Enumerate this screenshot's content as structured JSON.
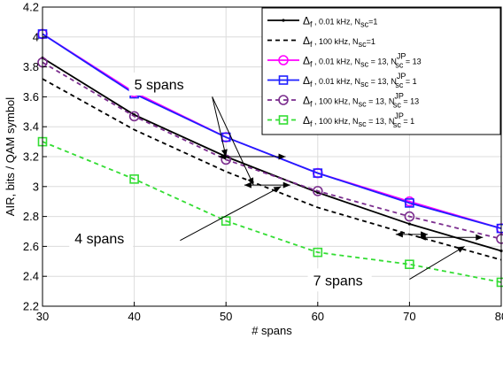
{
  "chart_data": {
    "type": "line",
    "xlabel": "# spans",
    "ylabel": "AIR, bits / QAM symbol",
    "xlim": [
      30,
      80
    ],
    "ylim": [
      2.2,
      4.2
    ],
    "xticks": [
      "30",
      "40",
      "50",
      "60",
      "70",
      "80"
    ],
    "yticks": [
      "2.2",
      "2.4",
      "2.6",
      "2.8",
      "3",
      "3.2",
      "3.4",
      "3.6",
      "3.8",
      "4",
      "4.2"
    ],
    "grid": true,
    "legend_position": "top-right",
    "x": [
      30,
      40,
      50,
      60,
      70,
      80
    ],
    "series": [
      {
        "name": "Δf , 0.01 kHz, Nsc=1",
        "legend": {
          "a": "Δ",
          "a_sub": "f",
          "b": " , 0.01 kHz, N",
          "b_sub": "sc",
          "c": "=1",
          "sup": "",
          "sup_sub": "",
          "d": ""
        },
        "values": [
          3.86,
          3.48,
          3.2,
          2.96,
          2.75,
          2.57
        ],
        "color": "#000000",
        "dash": "solid",
        "marker": "dot"
      },
      {
        "name": "Δf , 100 kHz, Nsc=1",
        "legend": {
          "a": "Δ",
          "a_sub": "f",
          "b": " , 100 kHz, N",
          "b_sub": "sc",
          "c": "=1",
          "sup": "",
          "sup_sub": "",
          "d": ""
        },
        "values": [
          3.72,
          3.38,
          3.1,
          2.86,
          2.68,
          2.51
        ],
        "color": "#000000",
        "dash": "dashed",
        "marker": "none"
      },
      {
        "name": "Δf , 0.01 kHz, Nsc = 13, NscJP = 13",
        "legend": {
          "a": "Δ",
          "a_sub": "f",
          "b": " , 0.01 kHz, N",
          "b_sub": "sc",
          "c": " = 13, N",
          "sup": "JP",
          "sup_sub": "sc",
          "d": " = 13"
        },
        "values": [
          4.02,
          3.63,
          3.33,
          3.09,
          2.9,
          2.72
        ],
        "color": "#ff00ff",
        "dash": "solid",
        "marker": "circle"
      },
      {
        "name": "Δf , 0.01 kHz, Nsc = 13, NscJP = 1",
        "legend": {
          "a": "Δ",
          "a_sub": "f",
          "b": " , 0.01 kHz, N",
          "b_sub": "sc",
          "c": " = 13, N",
          "sup": "JP",
          "sup_sub": "sc",
          "d": " = 1"
        },
        "values": [
          4.02,
          3.62,
          3.33,
          3.09,
          2.89,
          2.72
        ],
        "color": "#1f1fff",
        "dash": "solid",
        "marker": "square"
      },
      {
        "name": "Δf , 100 kHz, Nsc = 13, NscJP = 13",
        "legend": {
          "a": "Δ",
          "a_sub": "f",
          "b": " , 100 kHz, N",
          "b_sub": "sc",
          "c": " = 13, N",
          "sup": "JP",
          "sup_sub": "sc",
          "d": " = 13"
        },
        "values": [
          3.83,
          3.47,
          3.18,
          2.97,
          2.8,
          2.65
        ],
        "color": "#7b2d8e",
        "dash": "dashed",
        "marker": "circle"
      },
      {
        "name": "Δf , 100 kHz, Nsc = 13, NscJP = 1",
        "legend": {
          "a": "Δ",
          "a_sub": "f",
          "b": " , 100 kHz, N",
          "b_sub": "sc",
          "c": " = 13, N",
          "sup": "JP",
          "sup_sub": "sc",
          "d": " = 1"
        },
        "values": [
          3.3,
          3.05,
          2.77,
          2.56,
          2.48,
          2.36
        ],
        "color": "#33dd33",
        "dash": "dashed",
        "marker": "square"
      }
    ],
    "annotations": [
      {
        "text": "5 spans",
        "arrows": [
          {
            "from": [
              48.5,
              3.6
            ],
            "to": [
              50,
              3.2
            ]
          },
          {
            "from": [
              48.5,
              3.6
            ],
            "to": [
              53,
              3.01
            ]
          }
        ],
        "markers": [
          {
            "x1": 49.2,
            "x2": 56.5,
            "y": 3.2
          },
          {
            "x1": 52,
            "x2": 57,
            "y": 3.01
          }
        ]
      },
      {
        "text": "4 spans",
        "arrows": [
          {
            "from": [
              45,
              2.64
            ],
            "to": [
              56,
              3.0
            ]
          }
        ],
        "markers": []
      },
      {
        "text": "7 spans",
        "arrows": [
          {
            "from": [
              70,
              2.38
            ],
            "to": [
              76,
              2.6
            ]
          }
        ],
        "markers": [
          {
            "x1": 68.5,
            "x2": 72,
            "y": 2.68
          },
          {
            "x1": 71,
            "x2": 78,
            "y": 2.66
          }
        ]
      }
    ]
  }
}
